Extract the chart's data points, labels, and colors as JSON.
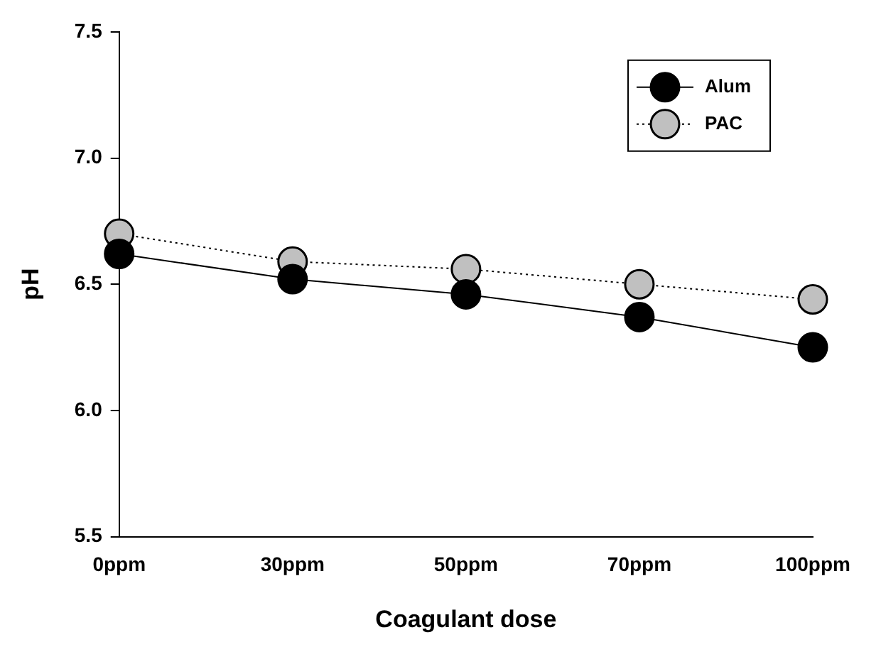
{
  "chart_data": {
    "type": "line",
    "xlabel": "Coagulant dose",
    "ylabel": "pH",
    "categories": [
      "0ppm",
      "30ppm",
      "50ppm",
      "70ppm",
      "100ppm"
    ],
    "series": [
      {
        "name": "Alum",
        "color": "#000000",
        "line_style": "solid",
        "values": [
          6.62,
          6.52,
          6.46,
          6.37,
          6.25
        ]
      },
      {
        "name": "PAC",
        "color": "#c0c0c0",
        "line_style": "dotted",
        "values": [
          6.7,
          6.59,
          6.56,
          6.5,
          6.44
        ]
      }
    ],
    "ylim": [
      5.5,
      7.5
    ],
    "yticks": [
      {
        "value": 5.5,
        "label": "5.5"
      },
      {
        "value": 6,
        "label": "6.0"
      },
      {
        "value": 6.5,
        "label": "6.5"
      },
      {
        "value": 7,
        "label": "7.0"
      },
      {
        "value": 7.5,
        "label": "7.5"
      }
    ],
    "grid": false,
    "legend": "top right",
    "marker": "circle"
  }
}
